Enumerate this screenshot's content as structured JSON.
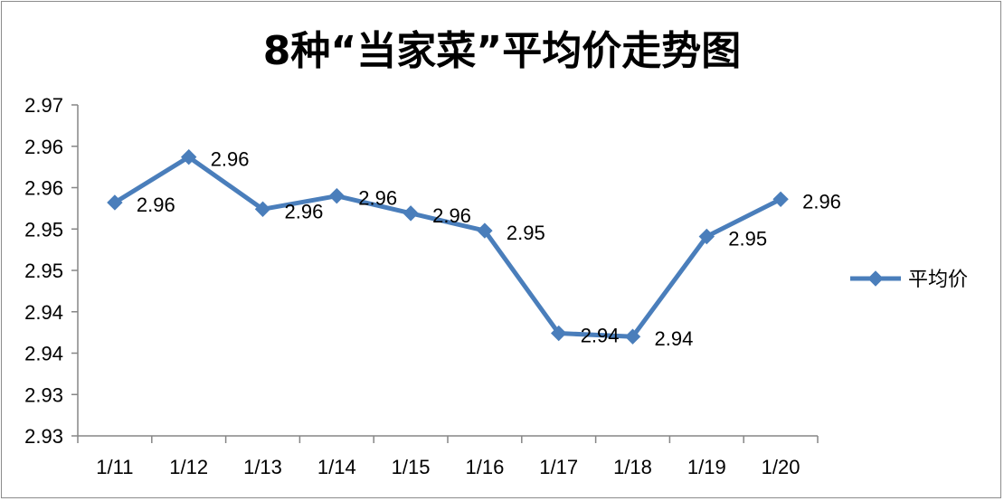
{
  "title": "8种“当家菜”平均价走势图",
  "chart_data": {
    "type": "line",
    "title": "8种“当家菜”平均价走势图",
    "categories": [
      "1/11",
      "1/12",
      "1/13",
      "1/14",
      "1/15",
      "1/16",
      "1/17",
      "1/18",
      "1/19",
      "1/20"
    ],
    "y_tick_labels": [
      "2.97",
      "2.96",
      "2.96",
      "2.95",
      "2.95",
      "2.94",
      "2.94",
      "2.93",
      "2.93"
    ],
    "ylim": [
      2.93,
      2.97
    ],
    "series": [
      {
        "name": "平均价",
        "color": "#4a7ebb",
        "marker": "diamond",
        "values": [
          2.9582,
          2.9637,
          2.9574,
          2.959,
          2.9569,
          2.9548,
          2.9424,
          2.942,
          2.9541,
          2.9586
        ],
        "data_labels": [
          "2.96",
          "2.96",
          "2.96",
          "2.96",
          "2.96",
          "2.95",
          "2.94",
          "2.94",
          "2.95",
          "2.96"
        ]
      }
    ],
    "legend_position": "right",
    "grid": false
  }
}
